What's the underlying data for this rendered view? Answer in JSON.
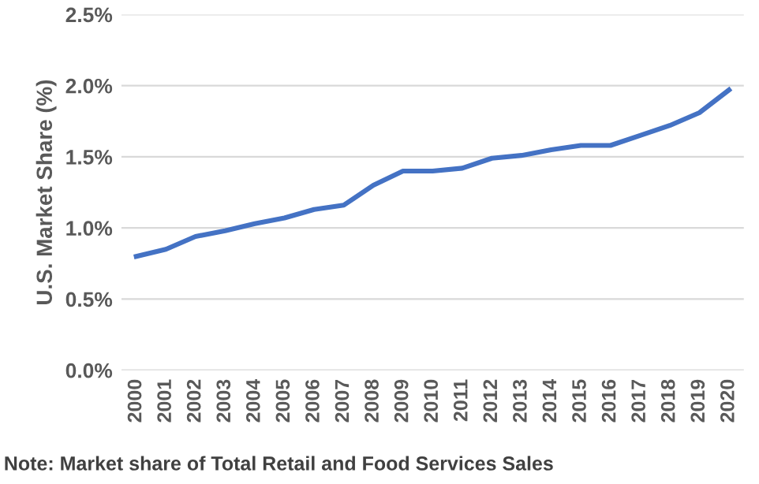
{
  "chart_data": {
    "type": "line",
    "ylabel": "U.S. Market Share (%)",
    "categories": [
      "2000",
      "2001",
      "2002",
      "2003",
      "2004",
      "2005",
      "2006",
      "2007",
      "2008",
      "2009",
      "2010",
      "2011",
      "2012",
      "2013",
      "2014",
      "2015",
      "2016",
      "2017",
      "2018",
      "2019",
      "2020"
    ],
    "series": [
      {
        "color": "#4472c4",
        "values": [
          0.8,
          0.85,
          0.94,
          0.98,
          1.03,
          1.07,
          1.13,
          1.16,
          1.3,
          1.4,
          1.4,
          1.42,
          1.49,
          1.51,
          1.55,
          1.58,
          1.58,
          1.65,
          1.72,
          1.81,
          1.97
        ]
      }
    ],
    "ylim": [
      0,
      2.5
    ],
    "yticks": [
      {
        "value": 0,
        "label": "0.0%"
      },
      {
        "value": 0.5,
        "label": "0.5%"
      },
      {
        "value": 1.0,
        "label": "1.0%"
      },
      {
        "value": 1.5,
        "label": "1.5%"
      },
      {
        "value": 2.0,
        "label": "2.0%"
      },
      {
        "value": 2.5,
        "label": "2.5%"
      }
    ],
    "grid": "y",
    "legend": false,
    "annotations": [
      "Note: Market share of Total Retail and Food Services Sales"
    ]
  }
}
